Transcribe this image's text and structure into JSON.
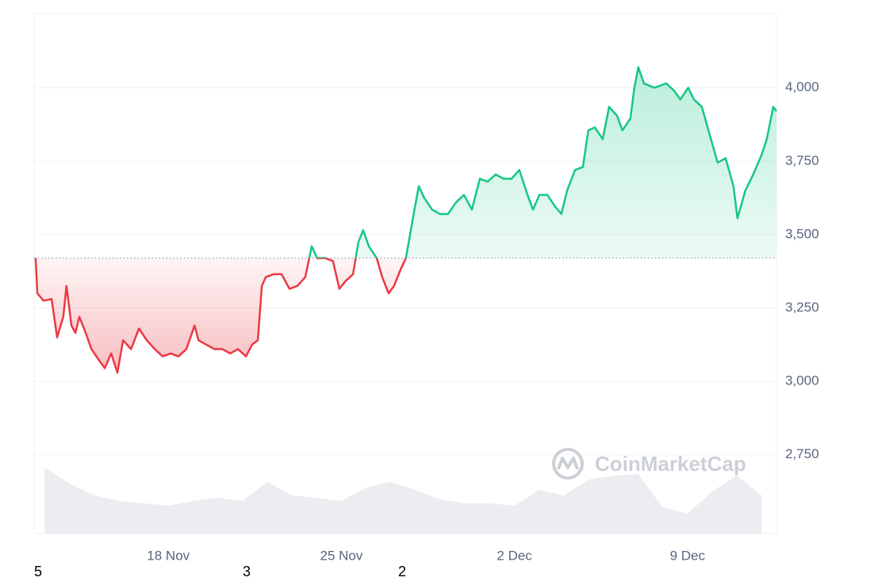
{
  "chart_data": {
    "type": "line",
    "watermark": "CoinMarketCap",
    "footer_labels": [
      "5",
      "3",
      "2"
    ],
    "x": [
      12.63,
      12.7,
      12.95,
      13.28,
      13.5,
      13.75,
      13.88,
      14.08,
      14.24,
      14.4,
      14.66,
      14.89,
      15.21,
      15.43,
      15.69,
      15.94,
      16.17,
      16.49,
      16.81,
      17.13,
      17.45,
      17.77,
      18.09,
      18.41,
      18.73,
      19.06,
      19.22,
      19.54,
      19.86,
      20.18,
      20.5,
      20.82,
      21.14,
      21.39,
      21.62,
      21.78,
      21.94,
      22.26,
      22.58,
      22.9,
      23.22,
      23.54,
      23.8,
      24.02,
      24.34,
      24.66,
      24.92,
      25.15,
      25.47,
      25.69,
      25.88,
      26.11,
      26.43,
      26.65,
      26.91,
      27.13,
      27.39,
      27.61,
      27.87,
      28.13,
      28.35,
      28.67,
      28.99,
      29.31,
      29.64,
      29.96,
      30.28,
      30.6,
      30.92,
      31.24,
      31.56,
      31.88,
      32.2,
      32.53,
      32.75,
      33.01,
      33.33,
      33.65,
      33.9,
      34.13,
      34.45,
      34.77,
      34.99,
      35.25,
      35.57,
      35.83,
      36.15,
      36.37,
      36.69,
      36.85,
      37.01,
      37.24,
      37.66,
      38.14,
      38.46,
      38.71,
      39.03,
      39.26,
      39.58,
      39.9,
      40.22,
      40.54,
      40.86,
      41.02,
      41.34,
      41.66,
      41.99,
      42.21,
      42.47,
      42.6
    ],
    "values": [
      3420,
      3300,
      3275,
      3280,
      3150,
      3220,
      3325,
      3190,
      3165,
      3220,
      3165,
      3110,
      3070,
      3045,
      3095,
      3030,
      3140,
      3110,
      3180,
      3140,
      3110,
      3085,
      3095,
      3085,
      3110,
      3190,
      3140,
      3125,
      3110,
      3110,
      3095,
      3110,
      3085,
      3125,
      3140,
      3325,
      3355,
      3365,
      3365,
      3315,
      3325,
      3355,
      3460,
      3420,
      3420,
      3410,
      3315,
      3340,
      3365,
      3475,
      3515,
      3460,
      3420,
      3355,
      3300,
      3325,
      3380,
      3420,
      3545,
      3665,
      3625,
      3585,
      3570,
      3570,
      3610,
      3635,
      3585,
      3690,
      3680,
      3705,
      3690,
      3690,
      3720,
      3635,
      3585,
      3635,
      3635,
      3595,
      3570,
      3650,
      3720,
      3730,
      3855,
      3865,
      3825,
      3935,
      3905,
      3855,
      3895,
      4000,
      4070,
      4015,
      4000,
      4015,
      3990,
      3960,
      4000,
      3960,
      3935,
      3840,
      3745,
      3760,
      3665,
      3555,
      3650,
      3705,
      3770,
      3825,
      3935,
      3920
    ],
    "reference_value": 3420,
    "up_color": "#16c784",
    "down_color": "#ea3943",
    "volume": {
      "x": [
        13,
        14,
        15,
        16,
        17,
        18,
        19,
        20,
        21,
        22,
        23,
        24,
        25,
        26,
        27,
        28,
        29,
        30,
        31,
        32,
        33,
        34,
        35,
        36,
        37,
        38,
        39,
        40,
        41,
        42
      ],
      "values": [
        83,
        63,
        48,
        41,
        38,
        35,
        41,
        45,
        41,
        65,
        48,
        45,
        41,
        58,
        65,
        55,
        43,
        38,
        38,
        35,
        55,
        48,
        68,
        73,
        75,
        33,
        25,
        53,
        73,
        48
      ],
      "vlim": [
        0,
        100
      ],
      "color": "#e6e8ec"
    },
    "xlim": [
      12.57,
      42.6
    ],
    "xticks": [
      {
        "value": 18,
        "label": "18 Nov"
      },
      {
        "value": 25,
        "label": "25 Nov"
      },
      {
        "value": 32,
        "label": "2 Dec"
      },
      {
        "value": 39,
        "label": "9 Dec"
      }
    ],
    "ylim": [
      2482,
      4253
    ],
    "yticks": [
      {
        "value": 2750,
        "label": "2,750"
      },
      {
        "value": 3000,
        "label": "3,000"
      },
      {
        "value": 3250,
        "label": "3,250"
      },
      {
        "value": 3500,
        "label": "3,500"
      },
      {
        "value": 3750,
        "label": "3,750"
      },
      {
        "value": 4000,
        "label": "4,000"
      }
    ],
    "grid": true
  }
}
